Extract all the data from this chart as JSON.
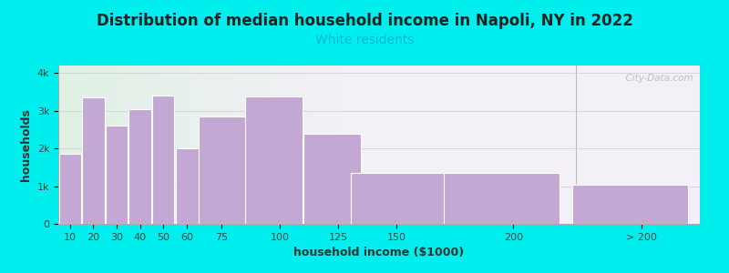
{
  "title": "Distribution of median household income in Napoli, NY in 2022",
  "subtitle": "White residents",
  "subtitle_color": "#00bbcc",
  "xlabel": "household income ($1000)",
  "ylabel": "households",
  "background_color": "#00eeee",
  "plot_bg_color_left": "#d8f0dc",
  "plot_bg_color_right": "#f4f0f8",
  "bar_color": "#c4a8d4",
  "bar_edge_color": "#ffffff",
  "values": [
    1850,
    3350,
    2600,
    3050,
    3400,
    2000,
    2850,
    3380,
    2400,
    1350,
    1350,
    1050
  ],
  "bar_widths": [
    10,
    10,
    10,
    10,
    10,
    15,
    25,
    25,
    25,
    50,
    50,
    50
  ],
  "bar_lefts": [
    5,
    15,
    25,
    35,
    45,
    55,
    65,
    85,
    110,
    130,
    170,
    225
  ],
  "xlim": [
    5,
    280
  ],
  "ylim": [
    0,
    4200
  ],
  "yticks": [
    0,
    1000,
    2000,
    3000,
    4000
  ],
  "ytick_labels": [
    "0",
    "1k",
    "2k",
    "3k",
    "4k"
  ],
  "xtick_positions": [
    10,
    20,
    30,
    40,
    50,
    60,
    75,
    100,
    125,
    150,
    200,
    255
  ],
  "xtick_labels": [
    "10",
    "20",
    "30",
    "40",
    "50",
    "60",
    "75",
    "100",
    "125",
    "150",
    "200",
    "> 200"
  ],
  "watermark": "  City-Data.com",
  "title_fontsize": 12,
  "subtitle_fontsize": 10,
  "label_fontsize": 9,
  "tick_fontsize": 8
}
